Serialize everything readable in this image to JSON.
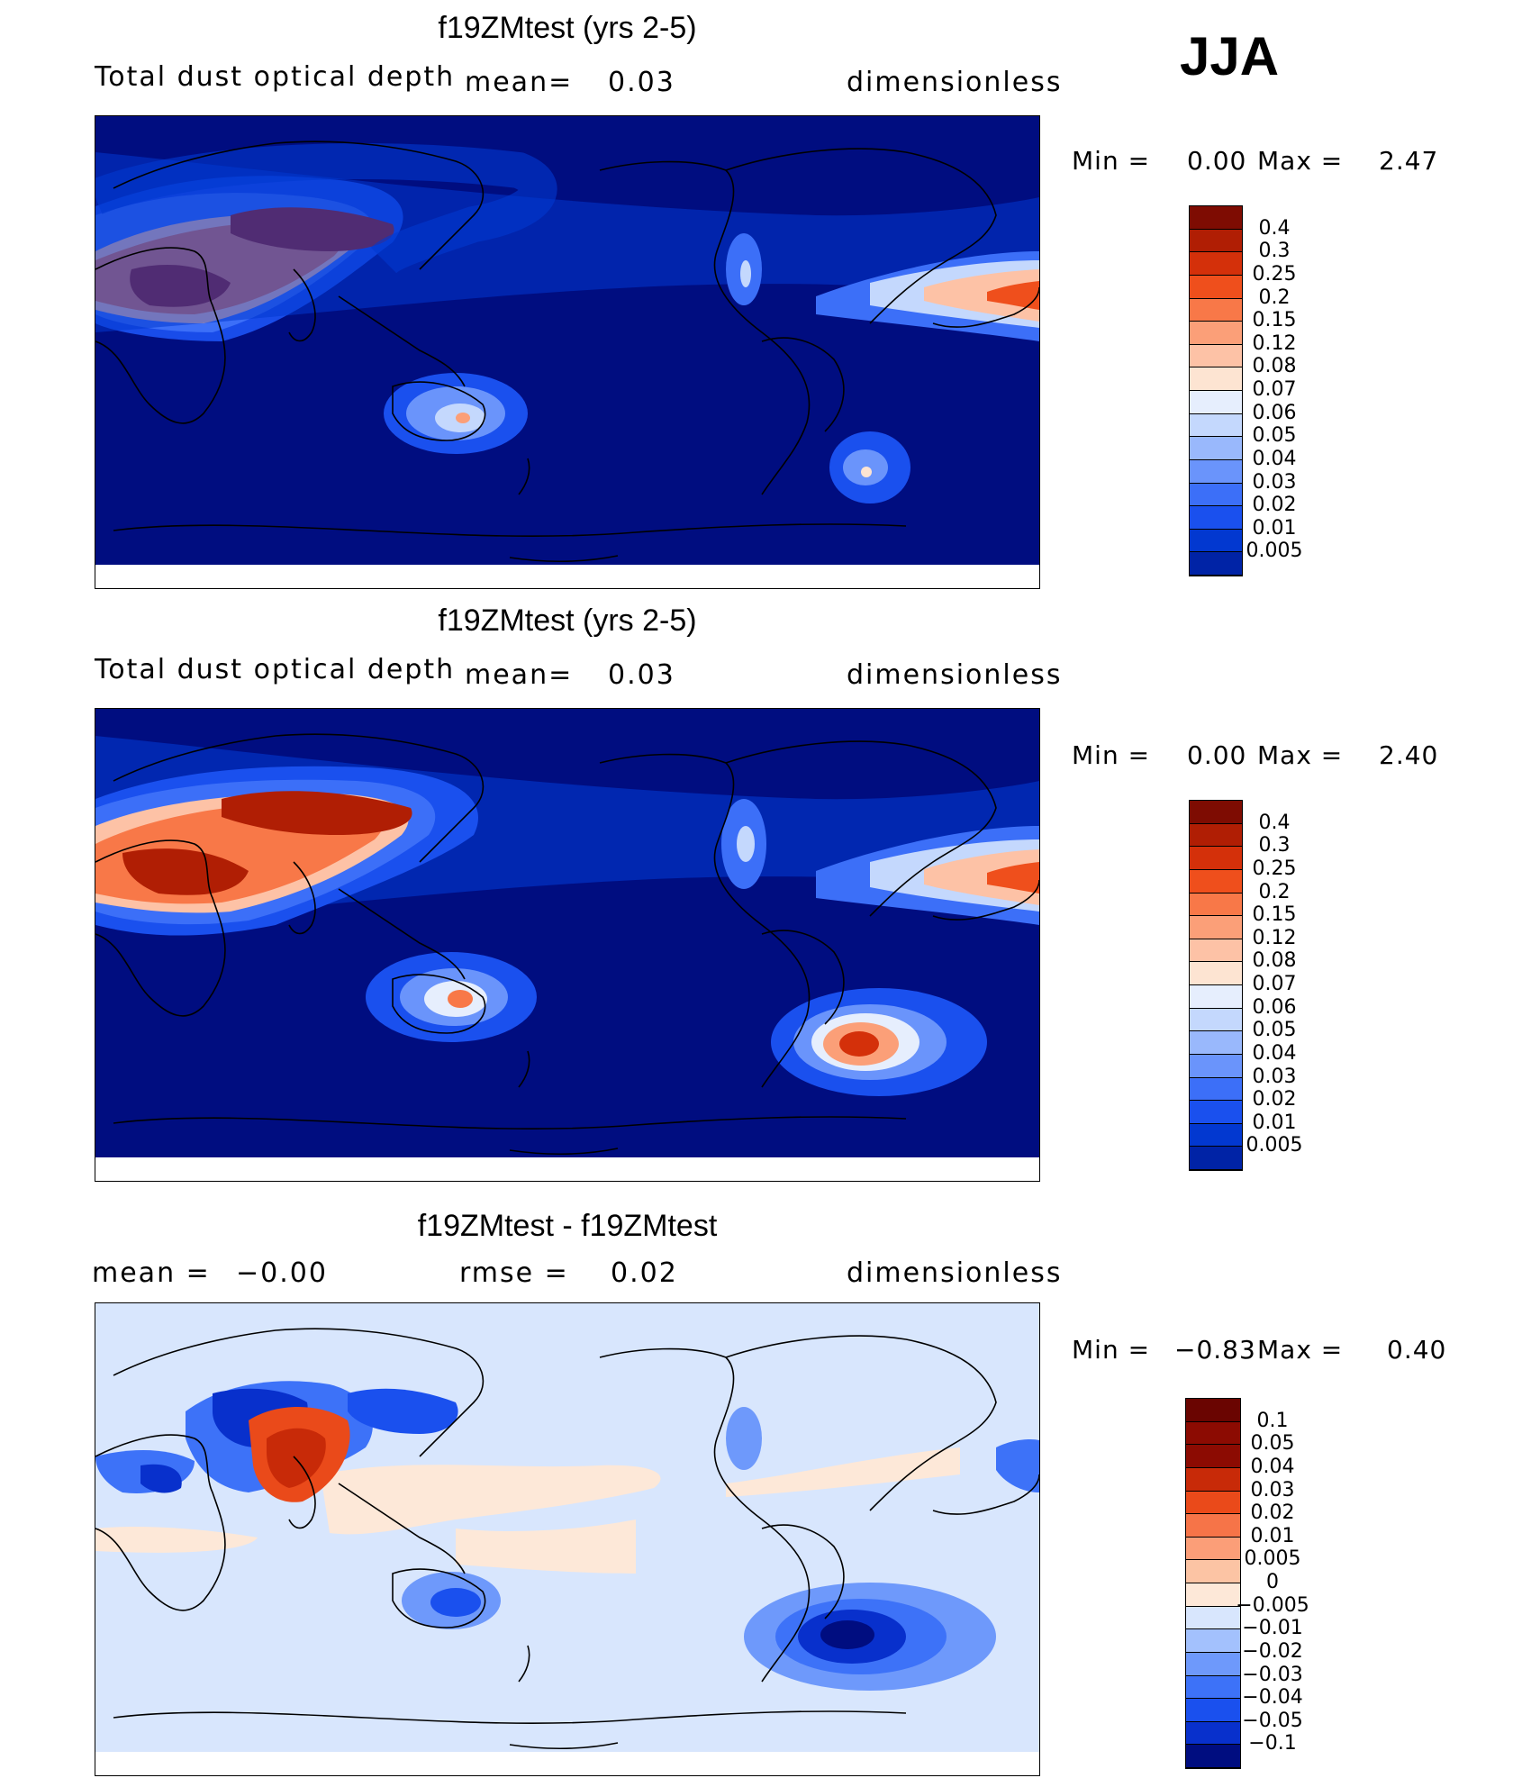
{
  "season": "JJA",
  "colors": {
    "abs_scale": [
      "#000d80",
      "#0023a6",
      "#0238d0",
      "#1a50ee",
      "#3c6ff8",
      "#6a94fb",
      "#99b8fc",
      "#c4d8fd",
      "#e6eefd",
      "#fde4d2",
      "#fdc2a6",
      "#fb9f78",
      "#f87848",
      "#ef4f1c",
      "#d4300a",
      "#b01e04",
      "#7e0c02"
    ],
    "diff_scale": [
      "#000d80",
      "#0830cc",
      "#1a50ee",
      "#3d72f8",
      "#6e99fb",
      "#a3c1fd",
      "#d8e6fd",
      "#fde8d8",
      "#fcc4a4",
      "#fb9e78",
      "#f67448",
      "#ea4a1a",
      "#c82a08",
      "#8c0b02"
    ],
    "land_outline": "#000000"
  },
  "panels": [
    {
      "title": "f19ZMtest (yrs 2-5)",
      "variable": "Total dust optical depth",
      "mean_label": "mean=",
      "mean_value": "0.03",
      "units": "dimensionless",
      "min_label": "Min =",
      "min_value": "0.00",
      "max_label": "Max =",
      "max_value": "2.47",
      "colorbar_labels": [
        "0.4",
        "0.3",
        "0.25",
        "0.2",
        "0.15",
        "0.12",
        "0.08",
        "0.07",
        "0.06",
        "0.05",
        "0.04",
        "0.03",
        "0.02",
        "0.01",
        "0.005"
      ]
    },
    {
      "title": "f19ZMtest (yrs 2-5)",
      "variable": "Total dust optical depth",
      "mean_label": "mean=",
      "mean_value": "0.03",
      "units": "dimensionless",
      "min_label": "Min =",
      "min_value": "0.00",
      "max_label": "Max =",
      "max_value": "2.40",
      "colorbar_labels": [
        "0.4",
        "0.3",
        "0.25",
        "0.2",
        "0.15",
        "0.12",
        "0.08",
        "0.07",
        "0.06",
        "0.05",
        "0.04",
        "0.03",
        "0.02",
        "0.01",
        "0.005"
      ]
    },
    {
      "title": "f19ZMtest - f19ZMtest",
      "mean_label": "mean =",
      "mean_value": "−0.00",
      "rmse_label": "rmse =",
      "rmse_value": "0.02",
      "units": "dimensionless",
      "min_label": "Min =",
      "min_value": "−0.83",
      "max_label": "Max =",
      "max_value": "0.40",
      "colorbar_labels": [
        "0.1",
        "0.05",
        "0.04",
        "0.03",
        "0.02",
        "0.01",
        "0.005",
        "0",
        "−0.005",
        "−0.01",
        "−0.02",
        "−0.03",
        "−0.04",
        "−0.05",
        "−0.1"
      ]
    }
  ]
}
